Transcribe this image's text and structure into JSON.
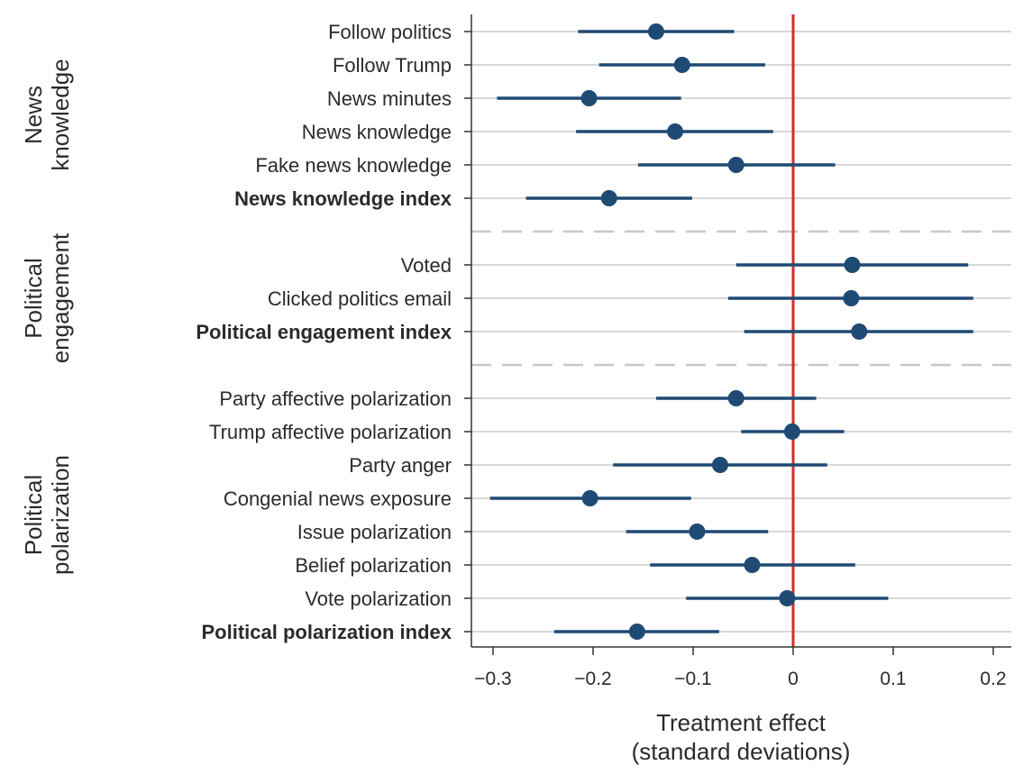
{
  "colors": {
    "point": "#1f4a74",
    "zero_line": "#d12b2b",
    "gridline": "#cccccc",
    "separator": "#c8c8c8",
    "axis": "#333333",
    "text": "#2b2b2b"
  },
  "chart_data": {
    "type": "scatter",
    "orientation": "horizontal",
    "xlabel_line1": "Treatment effect",
    "xlabel_line2": "(standard deviations)",
    "xlim": [
      -0.32,
      0.22
    ],
    "xticks": [
      -0.3,
      -0.2,
      -0.1,
      0,
      0.1,
      0.2
    ],
    "xtick_labels": [
      "−0.3",
      "−0.2",
      "−0.1",
      "0",
      "0.1",
      "0.2"
    ],
    "reference_line_x": 0,
    "gridlines": true,
    "groups": [
      {
        "label_line1": "News",
        "label_line2": "knowledge",
        "rows": [
          {
            "label": "Follow politics",
            "estimate": -0.137,
            "ci_low": -0.215,
            "ci_high": -0.059,
            "bold": false
          },
          {
            "label": "Follow Trump",
            "estimate": -0.111,
            "ci_low": -0.194,
            "ci_high": -0.028,
            "bold": false
          },
          {
            "label": "News minutes",
            "estimate": -0.204,
            "ci_low": -0.296,
            "ci_high": -0.112,
            "bold": false
          },
          {
            "label": "News knowledge",
            "estimate": -0.118,
            "ci_low": -0.217,
            "ci_high": -0.02,
            "bold": false
          },
          {
            "label": "Fake news knowledge",
            "estimate": -0.057,
            "ci_low": -0.155,
            "ci_high": 0.042,
            "bold": false
          },
          {
            "label": "News knowledge index",
            "estimate": -0.184,
            "ci_low": -0.267,
            "ci_high": -0.101,
            "bold": true
          }
        ]
      },
      {
        "label_line1": "Political",
        "label_line2": "engagement",
        "rows": [
          {
            "label": "Voted",
            "estimate": 0.059,
            "ci_low": -0.057,
            "ci_high": 0.175,
            "bold": false
          },
          {
            "label": "Clicked politics email",
            "estimate": 0.058,
            "ci_low": -0.065,
            "ci_high": 0.18,
            "bold": false
          },
          {
            "label": "Political engagement index",
            "estimate": 0.066,
            "ci_low": -0.049,
            "ci_high": 0.18,
            "bold": true
          }
        ]
      },
      {
        "label_line1": "Political",
        "label_line2": "polarization",
        "rows": [
          {
            "label": "Party affective polarization",
            "estimate": -0.057,
            "ci_low": -0.137,
            "ci_high": 0.023,
            "bold": false
          },
          {
            "label": "Trump affective polarization",
            "estimate": -0.001,
            "ci_low": -0.052,
            "ci_high": 0.051,
            "bold": false
          },
          {
            "label": "Party anger",
            "estimate": -0.073,
            "ci_low": -0.18,
            "ci_high": 0.034,
            "bold": false
          },
          {
            "label": "Congenial news exposure",
            "estimate": -0.203,
            "ci_low": -0.303,
            "ci_high": -0.102,
            "bold": false
          },
          {
            "label": "Issue polarization",
            "estimate": -0.096,
            "ci_low": -0.167,
            "ci_high": -0.025,
            "bold": false
          },
          {
            "label": "Belief polarization",
            "estimate": -0.041,
            "ci_low": -0.143,
            "ci_high": 0.062,
            "bold": false
          },
          {
            "label": "Vote polarization",
            "estimate": -0.006,
            "ci_low": -0.107,
            "ci_high": 0.095,
            "bold": false
          },
          {
            "label": "Political polarization index",
            "estimate": -0.156,
            "ci_low": -0.239,
            "ci_high": -0.074,
            "bold": true
          }
        ]
      }
    ]
  }
}
